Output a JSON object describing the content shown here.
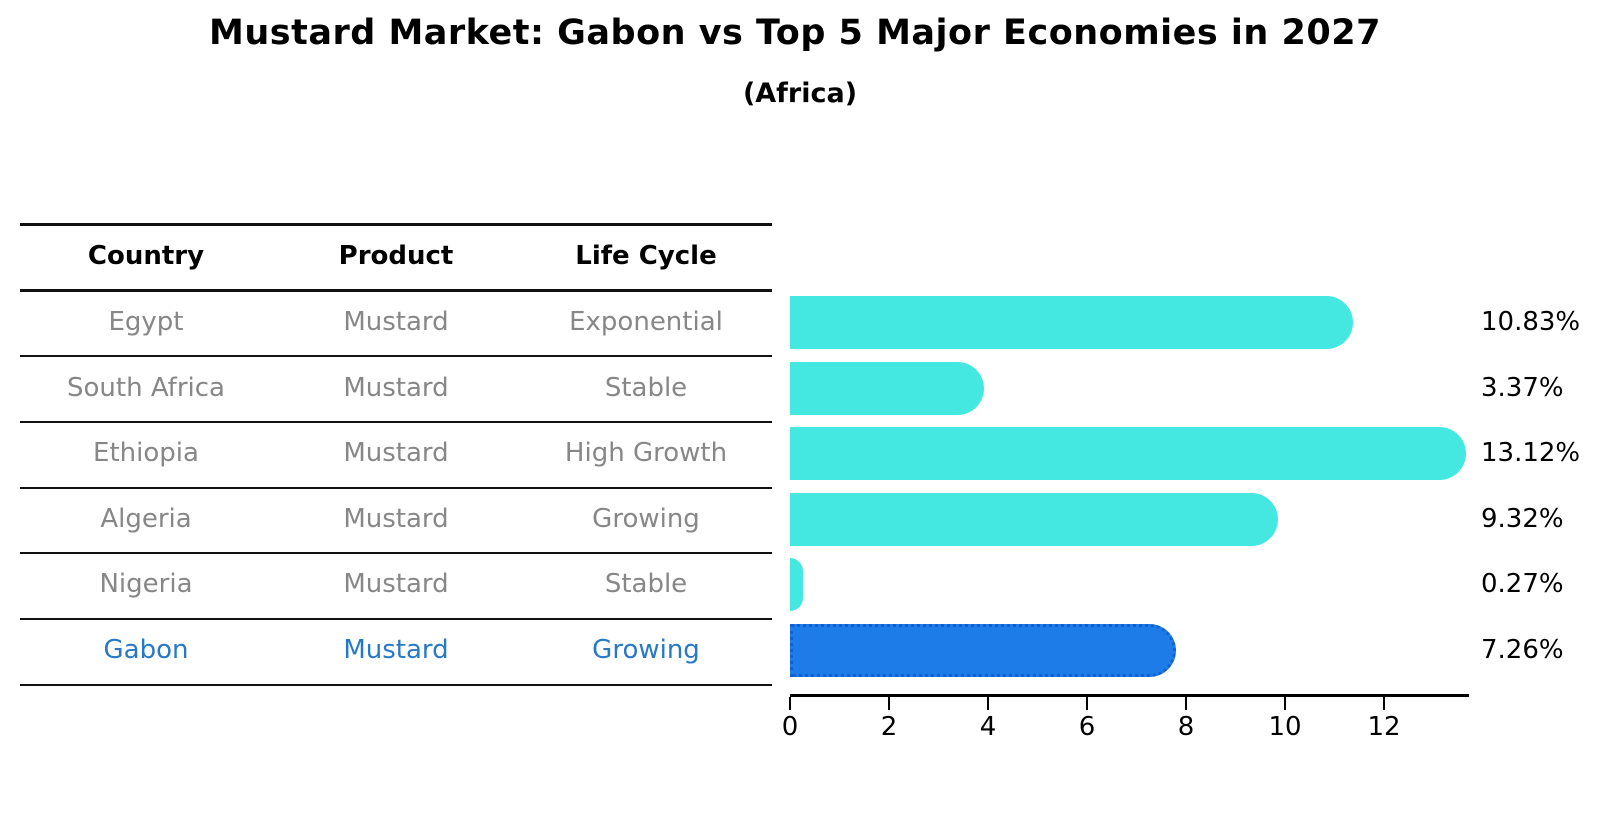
{
  "title": "Mustard Market: Gabon vs Top 5 Major Economies in 2027",
  "subtitle": "(Africa)",
  "table": {
    "headers": [
      "Country",
      "Product",
      "Life Cycle"
    ],
    "rows": [
      {
        "country": "Egypt",
        "product": "Mustard",
        "life_cycle": "Exponential",
        "highlighted": false
      },
      {
        "country": "South Africa",
        "product": "Mustard",
        "life_cycle": "Stable",
        "highlighted": false
      },
      {
        "country": "Ethiopia",
        "product": "Mustard",
        "life_cycle": "High Growth",
        "highlighted": false
      },
      {
        "country": "Algeria",
        "product": "Mustard",
        "life_cycle": "Growing",
        "highlighted": false
      },
      {
        "country": "Nigeria",
        "product": "Mustard",
        "life_cycle": "Stable",
        "highlighted": false
      },
      {
        "country": "Gabon",
        "product": "Mustard",
        "life_cycle": "Growing",
        "highlighted": true
      }
    ]
  },
  "chart_data": {
    "type": "bar",
    "orientation": "horizontal",
    "title": "Mustard Market: Gabon vs Top 5 Major Economies in 2027",
    "subtitle": "(Africa)",
    "categories": [
      "Egypt",
      "South Africa",
      "Ethiopia",
      "Algeria",
      "Nigeria",
      "Gabon"
    ],
    "values": [
      10.83,
      3.37,
      13.12,
      9.32,
      0.27,
      7.26
    ],
    "value_labels": [
      "10.83%",
      "3.37%",
      "13.12%",
      "9.32%",
      "0.27%",
      "7.26%"
    ],
    "xlabel": "",
    "ylabel": "",
    "xlim": [
      0,
      13.7
    ],
    "xticks": [
      0,
      2,
      4,
      6,
      8,
      10,
      12
    ],
    "grid": false,
    "legend": false,
    "highlight_index": 5
  },
  "colors": {
    "bar_default": "#45e8e1",
    "bar_highlight": "#1e7ce8",
    "bar_highlight_border": "#1261cf",
    "table_text": "#878787",
    "table_highlight_text": "#2878c8",
    "heading_text": "#000000",
    "axis": "#000000"
  }
}
